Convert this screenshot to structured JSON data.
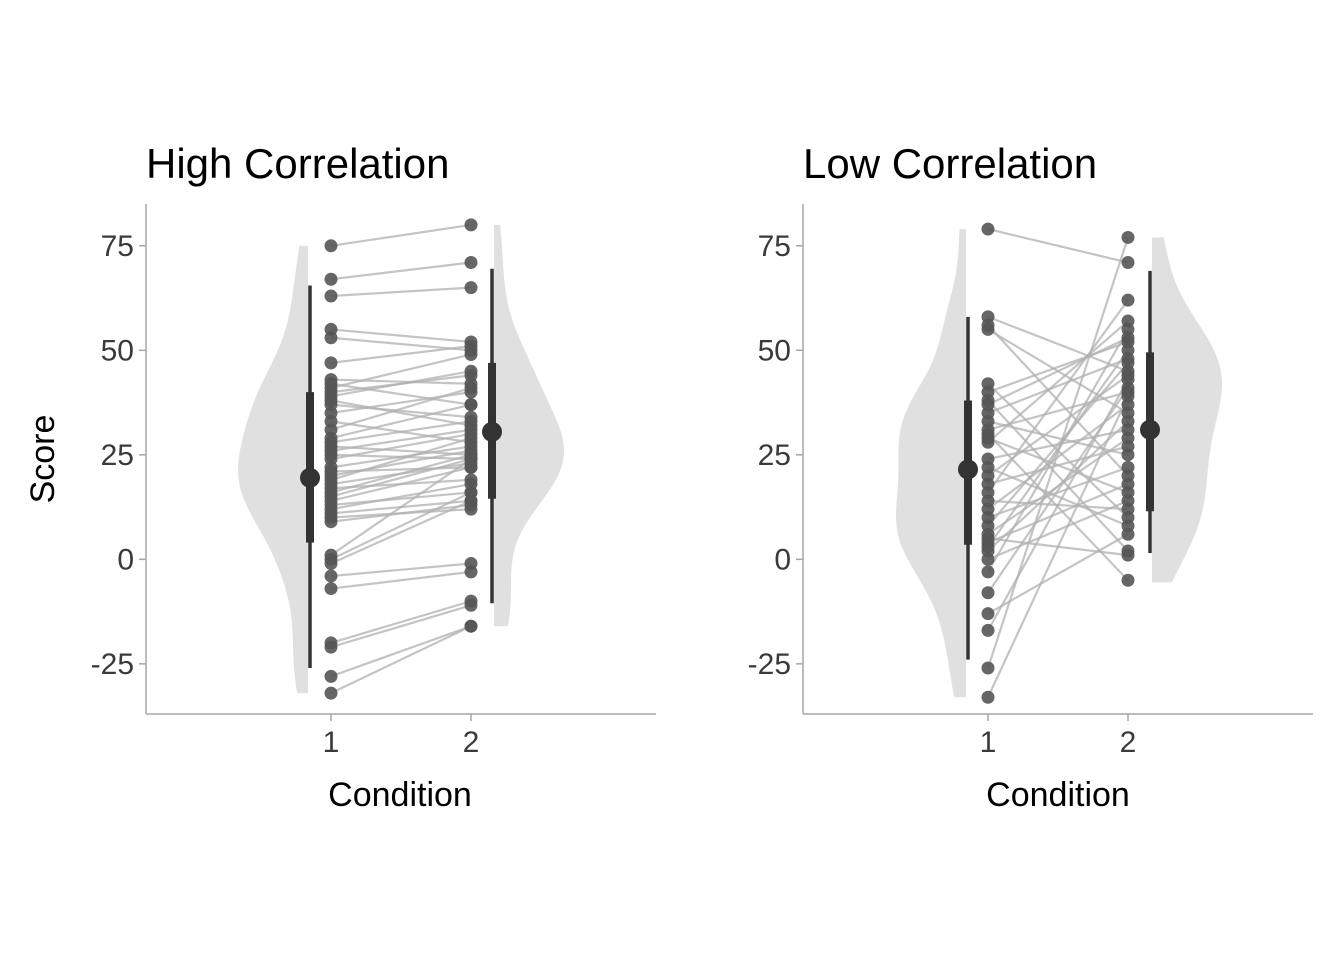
{
  "chart_data": [
    {
      "type": "scatter",
      "subtype": "paired raincloud (half-violin, points, point-range)",
      "title": "High Correlation",
      "xlabel": "Condition",
      "ylabel": "Score",
      "categories": [
        "1",
        "2"
      ],
      "xlim": [
        0,
        3
      ],
      "ylim": [
        -37,
        85
      ],
      "yticks": [
        -25,
        0,
        25,
        50,
        75
      ],
      "ytick_labels": [
        "-25",
        "0",
        "25",
        "50",
        "75"
      ],
      "grid": false,
      "legend": "none",
      "colors": {
        "point": "#555555",
        "line": "#b0b0b0",
        "violin": "#e0e0e0",
        "summary": "#333333"
      },
      "pairs": [
        [
          75,
          80
        ],
        [
          67,
          71
        ],
        [
          63,
          65
        ],
        [
          55,
          52
        ],
        [
          53,
          50
        ],
        [
          47,
          51
        ],
        [
          43,
          42
        ],
        [
          42,
          37
        ],
        [
          41,
          49
        ],
        [
          40,
          44
        ],
        [
          39,
          45
        ],
        [
          38,
          32
        ],
        [
          37,
          34
        ],
        [
          35,
          40
        ],
        [
          33,
          28
        ],
        [
          31,
          41
        ],
        [
          29,
          37
        ],
        [
          28,
          33
        ],
        [
          27,
          25
        ],
        [
          26,
          31
        ],
        [
          25,
          24
        ],
        [
          24,
          30
        ],
        [
          22,
          27
        ],
        [
          21,
          22
        ],
        [
          20,
          26
        ],
        [
          19,
          29
        ],
        [
          18,
          23
        ],
        [
          17,
          19
        ],
        [
          16,
          25
        ],
        [
          15,
          24
        ],
        [
          14,
          22
        ],
        [
          13,
          16
        ],
        [
          12,
          18
        ],
        [
          11,
          14
        ],
        [
          10,
          12
        ],
        [
          9,
          13
        ],
        [
          1,
          24
        ],
        [
          0,
          16
        ],
        [
          -1,
          14
        ],
        [
          -4,
          -1
        ],
        [
          -7,
          -3
        ],
        [
          -20,
          -10
        ],
        [
          -21,
          -11
        ],
        [
          -28,
          -16
        ],
        [
          -32,
          -16
        ]
      ],
      "summary": [
        {
          "condition": "1",
          "mean": 19.5,
          "inner": [
            4,
            40
          ],
          "outer": [
            -26,
            65.5
          ]
        },
        {
          "condition": "2",
          "mean": 30.5,
          "inner": [
            14.5,
            47
          ],
          "outer": [
            -10.5,
            69.5
          ]
        }
      ],
      "violin_range": [
        {
          "condition": "1",
          "min": -32,
          "max": 75
        },
        {
          "condition": "2",
          "min": -16,
          "max": 80
        }
      ]
    },
    {
      "type": "scatter",
      "subtype": "paired raincloud (half-violin, points, point-range)",
      "title": "Low Correlation",
      "xlabel": "Condition",
      "ylabel": "",
      "categories": [
        "1",
        "2"
      ],
      "xlim": [
        0,
        3
      ],
      "ylim": [
        -37,
        85
      ],
      "yticks": [
        -25,
        0,
        25,
        50,
        75
      ],
      "ytick_labels": [
        "-25",
        "0",
        "25",
        "50",
        "75"
      ],
      "grid": false,
      "legend": "none",
      "colors": {
        "point": "#555555",
        "line": "#b0b0b0",
        "violin": "#e0e0e0",
        "summary": "#333333"
      },
      "pairs": [
        [
          79,
          71
        ],
        [
          58,
          45
        ],
        [
          56,
          20
        ],
        [
          55,
          35
        ],
        [
          42,
          10
        ],
        [
          40,
          52
        ],
        [
          38,
          2
        ],
        [
          35,
          48
        ],
        [
          33,
          25
        ],
        [
          31,
          40
        ],
        [
          29,
          16
        ],
        [
          28,
          57
        ],
        [
          24,
          31
        ],
        [
          22,
          8
        ],
        [
          20,
          44
        ],
        [
          18,
          27
        ],
        [
          16,
          62
        ],
        [
          14,
          12
        ],
        [
          12,
          37
        ],
        [
          10,
          22
        ],
        [
          8,
          47
        ],
        [
          6,
          29
        ],
        [
          4,
          18
        ],
        [
          3,
          50
        ],
        [
          2,
          33
        ],
        [
          0,
          14
        ],
        [
          -3,
          55
        ],
        [
          -8,
          41
        ],
        [
          -13,
          6
        ],
        [
          -17,
          43
        ],
        [
          -26,
          77
        ],
        [
          -33,
          39
        ],
        [
          5,
          1
        ],
        [
          30,
          -5
        ],
        [
          37,
          53
        ]
      ],
      "summary": [
        {
          "condition": "1",
          "mean": 21.5,
          "inner": [
            3.5,
            38
          ],
          "outer": [
            -24,
            58
          ]
        },
        {
          "condition": "2",
          "mean": 31,
          "inner": [
            11.5,
            49.5
          ],
          "outer": [
            1.5,
            69
          ]
        }
      ],
      "violin_range": [
        {
          "condition": "1",
          "min": -33,
          "max": 79
        },
        {
          "condition": "2",
          "min": -5.5,
          "max": 77
        }
      ]
    }
  ]
}
